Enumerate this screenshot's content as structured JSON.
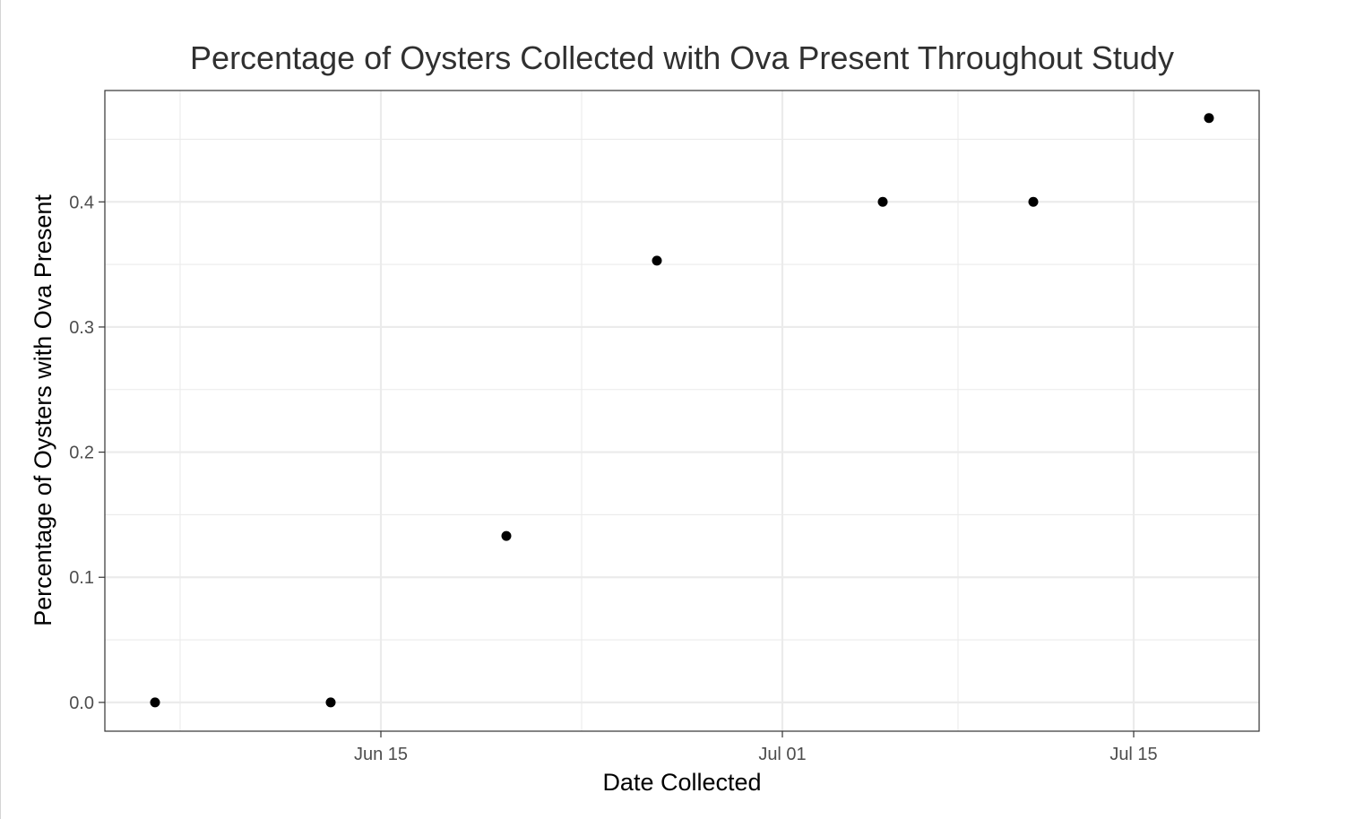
{
  "chart_data": {
    "type": "scatter",
    "title": "Percentage of Oysters Collected with Ova Present Throughout Study",
    "xlabel": "Date Collected",
    "ylabel": "Percentage of Oysters with Ova Present",
    "x_ticks": [
      {
        "date": "2018-06-15",
        "label": "Jun 15"
      },
      {
        "date": "2018-07-01",
        "label": "Jul 01"
      },
      {
        "date": "2018-07-15",
        "label": "Jul 15"
      }
    ],
    "y_ticks": [
      0.0,
      0.1,
      0.2,
      0.3,
      0.4
    ],
    "y_tick_labels": [
      "0.0",
      "0.1",
      "0.2",
      "0.3",
      "0.4"
    ],
    "xlim": [
      "2018-06-04",
      "2018-07-20"
    ],
    "ylim": [
      -0.023,
      0.489
    ],
    "grid": true,
    "series": [
      {
        "points": [
          {
            "x": "2018-06-06",
            "y": 0.0
          },
          {
            "x": "2018-06-13",
            "y": 0.0
          },
          {
            "x": "2018-06-20",
            "y": 0.133
          },
          {
            "x": "2018-06-26",
            "y": 0.353
          },
          {
            "x": "2018-07-05",
            "y": 0.4
          },
          {
            "x": "2018-07-11",
            "y": 0.4
          },
          {
            "x": "2018-07-18",
            "y": 0.467
          }
        ]
      }
    ],
    "colors": {
      "point": "#000000",
      "grid": "#ebebeb",
      "panel_border": "#333333",
      "text": "#4d4d4d"
    }
  }
}
